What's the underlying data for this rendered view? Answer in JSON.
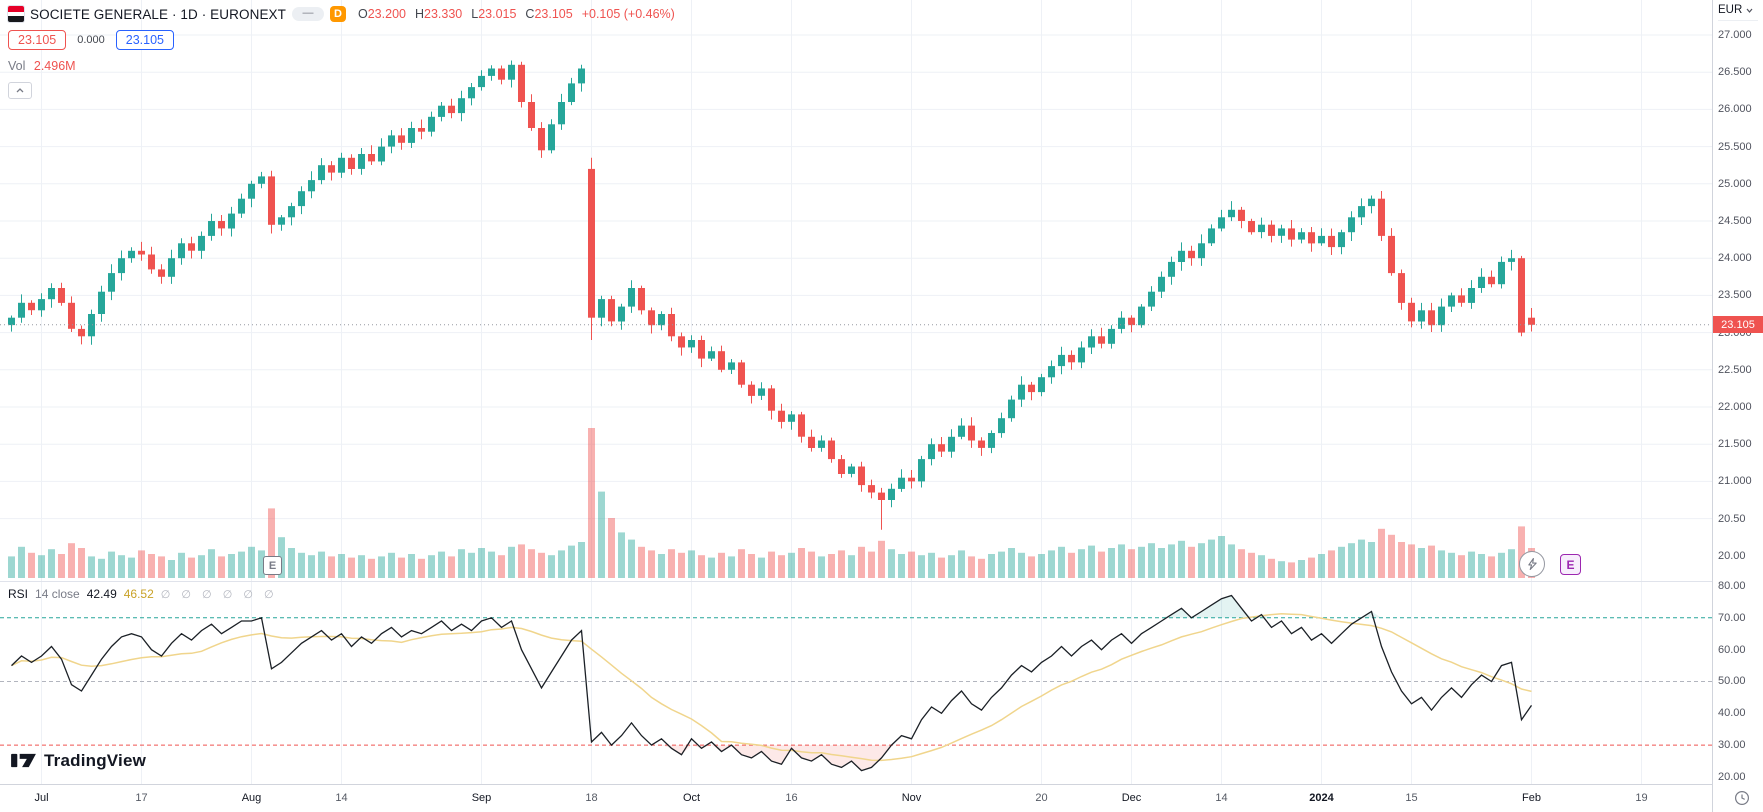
{
  "header": {
    "symbol_title": "SOCIETE GENERALE · 1D · EURONEXT",
    "minimized_badge": "—",
    "interval_badge": "D",
    "ohlc": {
      "open_label": "O",
      "open": "23.200",
      "high_label": "H",
      "high": "23.330",
      "low_label": "L",
      "low": "23.015",
      "close_label": "C",
      "close": "23.105",
      "change": "+0.105 (+0.46%)"
    },
    "currency": "EUR",
    "sell_price": "23.105",
    "spread": "0.000",
    "buy_price": "23.105",
    "vol_label": "Vol",
    "vol_value": "2.496M"
  },
  "rsi_legend": {
    "name": "RSI",
    "params": "14 close",
    "value": "42.49",
    "ma_value": "46.52",
    "empty_values": "∅ ∅ ∅ ∅ ∅ ∅"
  },
  "markers": {
    "earnings_label": "E",
    "upcoming_earnings_label": "E"
  },
  "logo": {
    "text": "TradingView"
  },
  "colors": {
    "up": "#26a69a",
    "down": "#ef5350",
    "accent_blue": "#2962ff",
    "badge_orange": "#ff9800",
    "earnings_purple": "#9c27b0",
    "rsi_line": "#1b2026",
    "rsi_ma": "#f0d58c",
    "band_upper": "#26a69a",
    "band_mid": "#b2b5be",
    "band_lower": "#ef5350",
    "grid": "#eef1f6",
    "last_price_line": "#9598a1",
    "tag_bg": "#ef5350"
  },
  "price_axis": {
    "last_price_tag": "23.105",
    "main": [
      [
        "27.000",
        27
      ],
      [
        "26.500",
        26.5
      ],
      [
        "26.000",
        26
      ],
      [
        "25.500",
        25.5
      ],
      [
        "25.000",
        25
      ],
      [
        "24.500",
        24.5
      ],
      [
        "24.000",
        24
      ],
      [
        "23.500",
        23.5
      ],
      [
        "23.000",
        23
      ],
      [
        "22.500",
        22.5
      ],
      [
        "22.000",
        22
      ],
      [
        "21.500",
        21.5
      ],
      [
        "21.000",
        21
      ],
      [
        "20.50",
        20.5
      ],
      [
        "20.00",
        20
      ]
    ],
    "rsi": [
      [
        "80.00",
        80
      ],
      [
        "70.00",
        70
      ],
      [
        "60.00",
        60
      ],
      [
        "50.00",
        50
      ],
      [
        "40.00",
        40
      ],
      [
        "30.00",
        30
      ],
      [
        "20.00",
        20
      ]
    ]
  },
  "chart_data": {
    "type": "candlestick",
    "symbol": "SOCIETE GENERALE",
    "interval": "1D",
    "exchange": "EURONEXT",
    "title": "SOCIETE GENERALE · 1D · EURONEXT",
    "ylim": [
      20.0,
      27.0
    ],
    "rsi_ylim": [
      20,
      80
    ],
    "rsi_bands": [
      70,
      50,
      30
    ],
    "first_open": 23.1,
    "closes": [
      23.2,
      23.4,
      23.3,
      23.45,
      23.6,
      23.4,
      23.05,
      22.95,
      23.25,
      23.55,
      23.8,
      24.0,
      24.1,
      24.05,
      23.85,
      23.75,
      24.0,
      24.2,
      24.1,
      24.3,
      24.5,
      24.4,
      24.6,
      24.8,
      25.0,
      25.1,
      24.45,
      24.55,
      24.7,
      24.9,
      25.05,
      25.25,
      25.15,
      25.35,
      25.2,
      25.4,
      25.3,
      25.5,
      25.65,
      25.55,
      25.75,
      25.7,
      25.9,
      26.05,
      25.95,
      26.15,
      26.3,
      26.45,
      26.55,
      26.4,
      26.6,
      26.1,
      25.75,
      25.45,
      25.8,
      26.1,
      26.35,
      26.55,
      23.2,
      23.45,
      23.15,
      23.35,
      23.6,
      23.3,
      23.1,
      23.25,
      22.95,
      22.8,
      22.9,
      22.65,
      22.75,
      22.5,
      22.6,
      22.3,
      22.15,
      22.25,
      21.95,
      21.8,
      21.9,
      21.6,
      21.45,
      21.55,
      21.3,
      21.1,
      21.2,
      20.95,
      20.85,
      20.75,
      20.9,
      21.05,
      21.0,
      21.3,
      21.5,
      21.4,
      21.6,
      21.75,
      21.55,
      21.45,
      21.65,
      21.85,
      22.1,
      22.3,
      22.2,
      22.4,
      22.55,
      22.7,
      22.6,
      22.8,
      22.95,
      22.85,
      23.05,
      23.2,
      23.1,
      23.35,
      23.55,
      23.75,
      23.95,
      24.1,
      24.0,
      24.2,
      24.4,
      24.55,
      24.65,
      24.5,
      24.35,
      24.45,
      24.3,
      24.4,
      24.25,
      24.35,
      24.2,
      24.3,
      24.15,
      24.35,
      24.55,
      24.7,
      24.8,
      24.3,
      23.8,
      23.4,
      23.15,
      23.3,
      23.1,
      23.35,
      23.5,
      23.4,
      23.6,
      23.75,
      23.65,
      23.95,
      24.0,
      23.0,
      23.105
    ],
    "volumes_m": [
      1.8,
      2.6,
      2.1,
      1.9,
      2.4,
      2.0,
      2.9,
      2.5,
      1.8,
      1.6,
      2.2,
      1.9,
      1.7,
      2.3,
      2.0,
      1.8,
      1.5,
      2.1,
      1.7,
      1.9,
      2.4,
      1.8,
      2.0,
      2.2,
      2.6,
      2.3,
      5.8,
      3.4,
      2.5,
      2.1,
      1.9,
      2.2,
      1.8,
      2.0,
      1.7,
      1.9,
      1.6,
      1.8,
      2.1,
      1.7,
      2.0,
      1.6,
      1.9,
      2.2,
      1.8,
      2.4,
      2.1,
      2.5,
      2.2,
      1.9,
      2.6,
      2.8,
      2.4,
      2.1,
      1.9,
      2.3,
      2.7,
      3.0,
      12.5,
      7.2,
      5.0,
      3.8,
      3.2,
      2.6,
      2.3,
      2.0,
      2.4,
      2.1,
      2.3,
      1.9,
      1.7,
      2.1,
      1.8,
      2.4,
      2.0,
      1.7,
      2.2,
      1.9,
      2.1,
      2.5,
      2.2,
      1.8,
      2.0,
      2.3,
      1.9,
      2.6,
      2.2,
      3.1,
      2.4,
      2.0,
      2.2,
      1.9,
      2.1,
      1.7,
      1.9,
      2.3,
      1.8,
      1.6,
      2.0,
      2.2,
      2.5,
      2.1,
      1.8,
      2.0,
      2.3,
      2.6,
      2.1,
      2.4,
      2.7,
      2.2,
      2.5,
      2.8,
      2.4,
      2.6,
      2.9,
      2.5,
      2.8,
      3.1,
      2.6,
      2.9,
      3.2,
      3.5,
      2.8,
      2.4,
      2.1,
      1.9,
      1.6,
      1.4,
      1.3,
      1.5,
      1.7,
      2.0,
      2.3,
      2.6,
      2.9,
      3.2,
      3.0,
      4.1,
      3.6,
      3.0,
      2.8,
      2.5,
      2.7,
      2.3,
      2.1,
      1.9,
      2.2,
      2.0,
      1.8,
      2.1,
      2.4,
      4.3,
      2.496
    ],
    "rsi_values": [
      55,
      58,
      56,
      58,
      61,
      57,
      49,
      47,
      52,
      57,
      61,
      64,
      65,
      64,
      60,
      58,
      62,
      65,
      63,
      66,
      68,
      65,
      67,
      69,
      69,
      70,
      54,
      56,
      59,
      62,
      64,
      66,
      63,
      65,
      61,
      64,
      62,
      65,
      67,
      64,
      66,
      65,
      67,
      69,
      66,
      68,
      66,
      69,
      70,
      67,
      69,
      60,
      54,
      48,
      53,
      58,
      63,
      66,
      31,
      34,
      30,
      33,
      37,
      33,
      30,
      32,
      29,
      27,
      32,
      29,
      31,
      28,
      30,
      27,
      26,
      28,
      25,
      24,
      29,
      26,
      25,
      27,
      24,
      23,
      25,
      22,
      23,
      26,
      30,
      33,
      32,
      38,
      42,
      40,
      44,
      47,
      43,
      41,
      45,
      48,
      52,
      55,
      53,
      56,
      58,
      61,
      58,
      61,
      63,
      60,
      63,
      65,
      62,
      65,
      67,
      69,
      71,
      73,
      70,
      72,
      74,
      76,
      77,
      73,
      69,
      71,
      67,
      69,
      65,
      67,
      63,
      65,
      62,
      65,
      68,
      70,
      72,
      61,
      53,
      47,
      43,
      45,
      41,
      45,
      48,
      45,
      49,
      52,
      50,
      55,
      56,
      38,
      42.49
    ],
    "special_candles": {
      "58": [
        25.2,
        25.35,
        22.9
      ],
      "87": [
        null,
        null,
        20.35
      ],
      "151": [
        null,
        null,
        22.95
      ],
      "152": [
        23.2,
        23.33,
        23.015
      ]
    },
    "last": {
      "open": 23.2,
      "high": 23.33,
      "low": 23.015,
      "close": 23.105,
      "volume_m": 2.496,
      "change": 0.105,
      "change_pct": 0.46
    },
    "rsi_last": 42.49,
    "rsi_ma_last": 46.52,
    "time_ticks": [
      [
        "Jul",
        3,
        1
      ],
      [
        "17",
        13,
        0
      ],
      [
        "Aug",
        24,
        1
      ],
      [
        "14",
        33,
        0
      ],
      [
        "Sep",
        47,
        1
      ],
      [
        "18",
        58,
        0
      ],
      [
        "Oct",
        68,
        1
      ],
      [
        "16",
        78,
        0
      ],
      [
        "Nov",
        90,
        1
      ],
      [
        "20",
        103,
        0
      ],
      [
        "Dec",
        112,
        1
      ],
      [
        "14",
        121,
        0
      ],
      [
        "2024",
        131,
        1
      ],
      [
        "15",
        140,
        0
      ],
      [
        "Feb",
        152,
        1
      ],
      [
        "19",
        163,
        0
      ]
    ]
  }
}
